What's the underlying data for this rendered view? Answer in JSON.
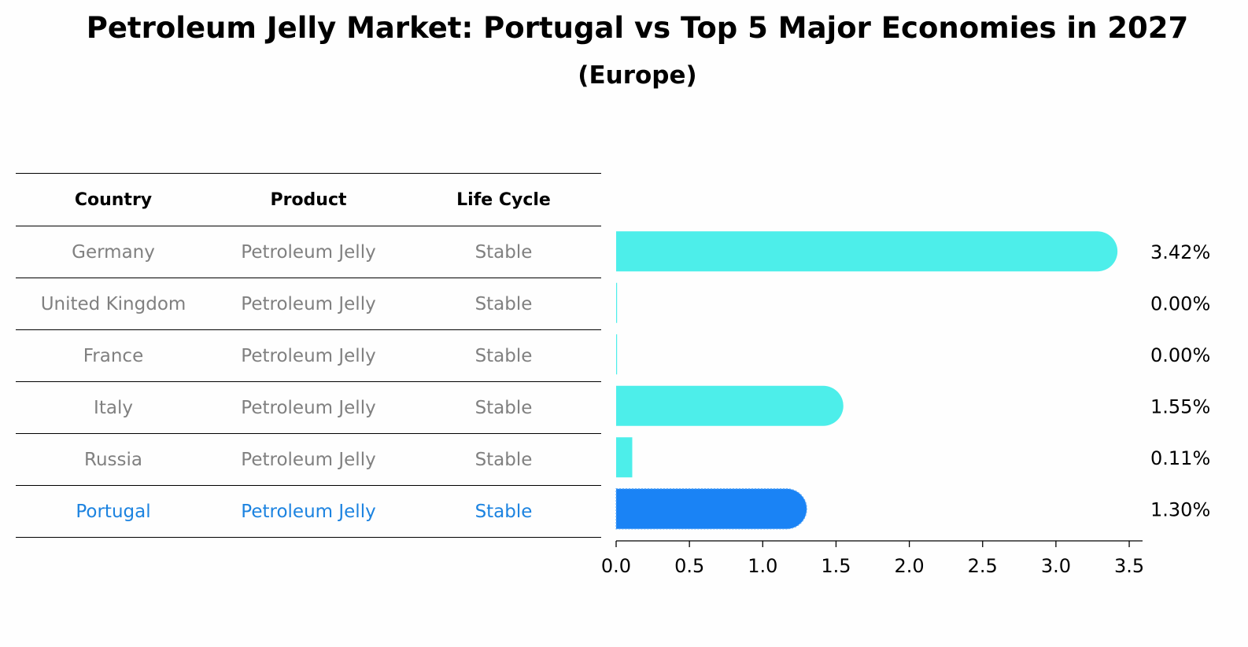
{
  "title": "Petroleum Jelly Market: Portugal vs Top 5 Major Economies in 2027",
  "subtitle": "(Europe)",
  "table": {
    "headers": [
      "Country",
      "Product",
      "Life Cycle"
    ],
    "rows": [
      {
        "country": "Germany",
        "product": "Petroleum Jelly",
        "life_cycle": "Stable"
      },
      {
        "country": "United Kingdom",
        "product": "Petroleum Jelly",
        "life_cycle": "Stable"
      },
      {
        "country": "France",
        "product": "Petroleum Jelly",
        "life_cycle": "Stable"
      },
      {
        "country": "Italy",
        "product": "Petroleum Jelly",
        "life_cycle": "Stable"
      },
      {
        "country": "Russia",
        "product": "Petroleum Jelly",
        "life_cycle": "Stable"
      },
      {
        "country": "Portugal",
        "product": "Petroleum Jelly",
        "life_cycle": "Stable"
      }
    ]
  },
  "colors": {
    "bar": "#4deeea",
    "highlight": "#1a83f5",
    "highlight_text": "#1c83e0",
    "muted_text": "#808080"
  },
  "chart_data": {
    "type": "bar",
    "orientation": "horizontal",
    "categories": [
      "Germany",
      "United Kingdom",
      "France",
      "Italy",
      "Russia",
      "Portugal"
    ],
    "values": [
      3.42,
      0.0,
      0.0,
      1.55,
      0.11,
      1.3
    ],
    "labels": [
      "3.42%",
      "0.00%",
      "0.00%",
      "1.55%",
      "0.11%",
      "1.30%"
    ],
    "highlight": "Portugal",
    "xlim": [
      0,
      3.6
    ],
    "xticks": [
      0.0,
      0.5,
      1.0,
      1.5,
      2.0,
      2.5,
      3.0,
      3.5
    ],
    "xtick_labels": [
      "0.0",
      "0.5",
      "1.0",
      "1.5",
      "2.0",
      "2.5",
      "3.0",
      "3.5"
    ]
  }
}
